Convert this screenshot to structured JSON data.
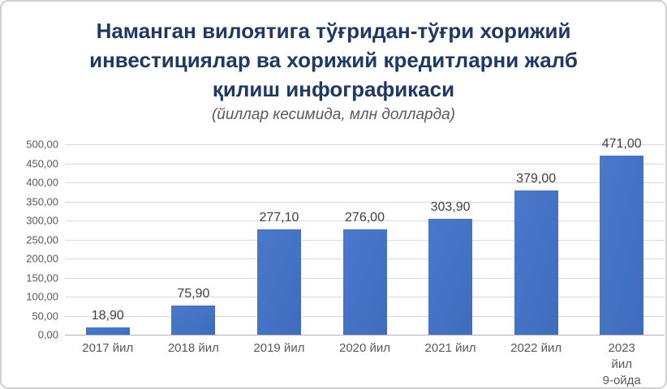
{
  "header": {
    "title_lines": [
      "Наманган вилоятига тўғридан-тўғри хорижий",
      "инвестициялар ва хорижий кредитларни жалб",
      "қилиш инфографикаси"
    ],
    "subtitle": "(йиллар кесимида, млн долларда)"
  },
  "chart_data": {
    "type": "bar",
    "title": "Наманган вилоятига тўғридан-тўғри хорижий инвестициялар ва хорижий кредитларни жалб қилиш инфографикаси",
    "subtitle": "(йиллар кесимида, млн долларда)",
    "categories": [
      "2017 йил",
      "2018 йил",
      "2019 йил",
      "2020 йил",
      "2021 йил",
      "2022 йил",
      "2023 йил\n9-ойда"
    ],
    "values": [
      18.9,
      75.9,
      277.1,
      276.0,
      303.9,
      379.0,
      471.0
    ],
    "value_labels": [
      "18,90",
      "75,90",
      "277,10",
      "276,00",
      "303,90",
      "379,00",
      "471,00"
    ],
    "xlabel": "",
    "ylabel": "",
    "ylim": [
      0,
      500
    ],
    "ytick_step": 50,
    "ytick_labels": [
      "0,00",
      "50,00",
      "100,00",
      "150,00",
      "200,00",
      "250,00",
      "300,00",
      "350,00",
      "400,00",
      "450,00",
      "500,00"
    ],
    "grid": true,
    "legend": "none",
    "bar_color": "#4472c4"
  },
  "colors": {
    "title": "#1f3864",
    "subtitle": "#595959",
    "axis_labels": "#595959",
    "data_labels": "#404040",
    "gridline": "#d9d9d9",
    "axis_line": "#b3b3b3",
    "bar": "#4472c4",
    "frame_border": "#d0d0d0",
    "background": "#ffffff"
  }
}
